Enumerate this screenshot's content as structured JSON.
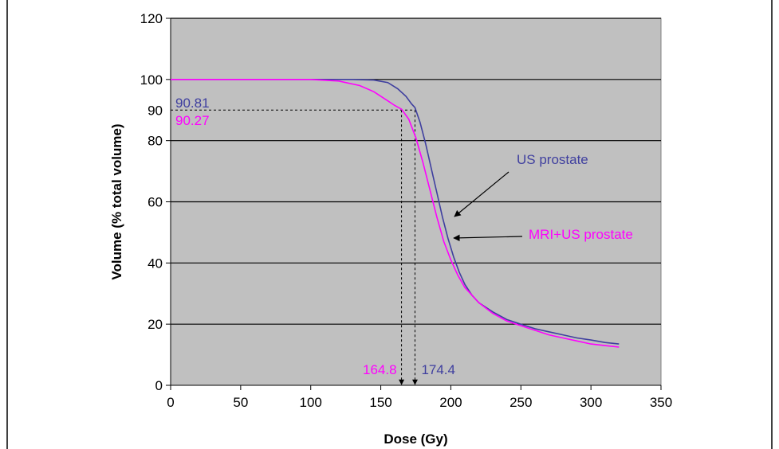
{
  "chart_data": {
    "type": "line",
    "title": "",
    "xlabel": "Dose (Gy)",
    "ylabel": "Volume (% total volume)",
    "xlim": [
      0,
      350
    ],
    "ylim": [
      0,
      120
    ],
    "xticks": [
      "0",
      "50",
      "100",
      "150",
      "200",
      "250",
      "300",
      "350"
    ],
    "yticks": [
      "0",
      "20",
      "40",
      "60",
      "80",
      "100",
      "120"
    ],
    "extra_ytick": "90",
    "grid": "horizontal",
    "plot_background": "#c0c0c0",
    "series": [
      {
        "name": "US prostate",
        "color": "#3f3f9f",
        "x": [
          0,
          100,
          130,
          145,
          155,
          162,
          168,
          172,
          174.4,
          178,
          182,
          186,
          190,
          194,
          198,
          202,
          206,
          210,
          215,
          220,
          230,
          240,
          250,
          260,
          270,
          280,
          290,
          300,
          310,
          320
        ],
        "y": [
          100,
          100,
          100,
          99.8,
          99,
          97,
          94.5,
          92,
          90.81,
          86,
          79,
          71,
          63,
          55,
          48,
          42,
          37,
          33,
          29.5,
          27,
          24,
          21.5,
          20,
          18.5,
          17.5,
          16.5,
          15.5,
          14.8,
          14,
          13.5
        ]
      },
      {
        "name": "MRI+US prostate",
        "color": "#ff00ff",
        "x": [
          0,
          100,
          120,
          135,
          145,
          155,
          160,
          164.8,
          170,
          175,
          180,
          185,
          190,
          195,
          200,
          205,
          210,
          220,
          230,
          240,
          250,
          260,
          270,
          280,
          290,
          300,
          310,
          320
        ],
        "y": [
          100,
          100,
          99.5,
          98,
          96,
          93,
          91.5,
          90.27,
          87,
          81,
          73,
          64,
          55,
          47,
          41,
          36,
          32,
          27,
          23.5,
          21,
          19.5,
          18,
          16.5,
          15.5,
          14.5,
          13.5,
          13,
          12.5
        ]
      }
    ],
    "annotations": {
      "blue_value": "90.81",
      "pink_value": "90.27",
      "blue_dose": "174.4",
      "pink_dose": "164.8",
      "blue_dose_x": 174.4,
      "pink_dose_x": 164.8,
      "level_y": 90,
      "us_label": "US prostate",
      "mri_label": "MRI+US prostate"
    }
  }
}
